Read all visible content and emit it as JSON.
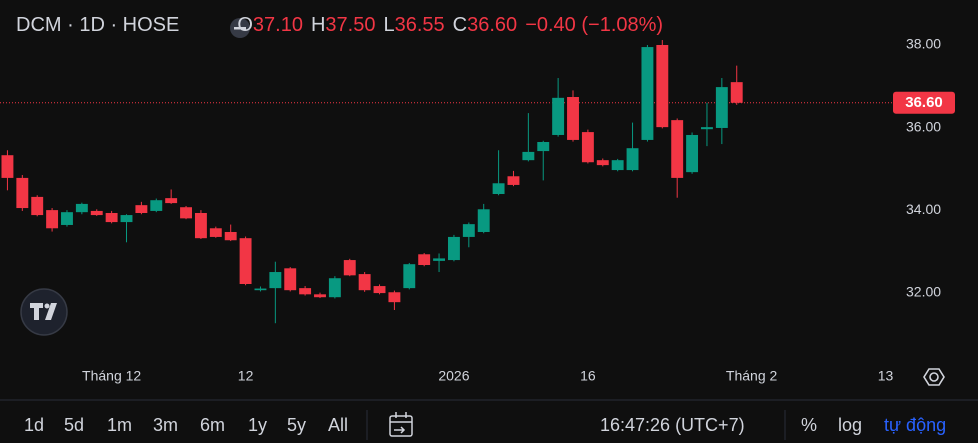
{
  "header": {
    "symbol": "DCM · 1D · HOSE",
    "o_label": "O",
    "open": "37.10",
    "h_label": "H",
    "high": "37.50",
    "l_label": "L",
    "low": "36.55",
    "c_label": "C",
    "close": "36.60",
    "change": "−0.40 (−1.08%)"
  },
  "chart_data": {
    "type": "candlestick",
    "categories": [
      null,
      null,
      null,
      null,
      null,
      null,
      null,
      "Tháng 12",
      null,
      null,
      null,
      null,
      null,
      null,
      null,
      null,
      "12",
      null,
      null,
      null,
      null,
      null,
      null,
      null,
      null,
      null,
      null,
      null,
      null,
      null,
      "2026",
      null,
      null,
      null,
      null,
      null,
      null,
      null,
      null,
      "16",
      null,
      null,
      null,
      null,
      null,
      null,
      null,
      null,
      null,
      null,
      "Tháng 2",
      null,
      null,
      null,
      null,
      null,
      null,
      null,
      null,
      "13"
    ],
    "open": [
      35.33,
      34.78,
      34.32,
      34.0,
      33.64,
      33.95,
      33.98,
      33.93,
      33.71,
      34.12,
      33.98,
      34.29,
      34.07,
      33.93,
      33.56,
      33.47,
      33.32,
      32.06,
      32.11,
      32.59,
      32.11,
      31.96,
      31.89,
      32.79,
      32.45,
      32.16,
      32.01,
      32.11,
      32.93,
      32.77,
      32.79,
      33.35,
      33.47,
      34.39,
      34.82,
      35.21,
      35.43,
      35.82,
      36.74,
      35.89,
      35.21,
      34.97,
      34.97,
      35.7,
      38.0,
      36.18,
      34.92,
      35.96,
      35.99,
      37.1,
      null,
      null,
      null,
      null,
      null,
      null,
      null,
      null,
      null,
      null
    ],
    "high": [
      35.45,
      34.85,
      34.36,
      34.05,
      34.0,
      34.18,
      34.02,
      33.98,
      33.9,
      34.2,
      34.28,
      34.5,
      34.1,
      34.0,
      33.6,
      33.65,
      33.36,
      32.15,
      32.75,
      32.62,
      32.16,
      32.0,
      32.4,
      32.82,
      32.5,
      32.2,
      32.05,
      32.72,
      32.96,
      32.95,
      33.4,
      33.7,
      34.15,
      35.45,
      34.95,
      36.35,
      35.68,
      37.2,
      36.9,
      35.95,
      35.25,
      35.24,
      36.12,
      38.0,
      38.12,
      36.22,
      35.88,
      36.6,
      37.2,
      37.5,
      null,
      null,
      null,
      null,
      null,
      null,
      null,
      null,
      null,
      null
    ],
    "low": [
      34.48,
      33.98,
      33.85,
      33.48,
      33.6,
      33.9,
      33.86,
      33.68,
      33.22,
      33.9,
      33.95,
      34.15,
      33.78,
      33.3,
      33.33,
      33.25,
      32.18,
      32.03,
      31.26,
      32.03,
      31.93,
      31.87,
      31.86,
      32.4,
      32.02,
      31.96,
      31.58,
      32.08,
      32.64,
      32.5,
      32.76,
      33.1,
      33.44,
      34.36,
      34.58,
      35.18,
      34.72,
      35.78,
      35.66,
      35.13,
      35.06,
      34.94,
      34.94,
      35.66,
      35.98,
      34.3,
      34.88,
      35.55,
      35.6,
      36.55,
      null,
      null,
      null,
      null,
      null,
      null,
      null,
      null,
      null,
      null
    ],
    "close": [
      34.78,
      34.05,
      33.88,
      33.56,
      33.95,
      34.15,
      33.88,
      33.71,
      33.88,
      33.93,
      34.24,
      34.17,
      33.8,
      33.32,
      33.35,
      33.27,
      32.21,
      32.1,
      32.5,
      32.06,
      31.96,
      31.89,
      32.35,
      32.42,
      32.06,
      31.99,
      31.77,
      32.69,
      32.67,
      32.83,
      33.35,
      33.66,
      34.02,
      34.65,
      34.61,
      35.41,
      35.65,
      36.72,
      35.7,
      35.16,
      35.09,
      35.21,
      35.5,
      37.95,
      36.01,
      34.78,
      35.82,
      36.01,
      36.98,
      36.6,
      null,
      null,
      null,
      null,
      null,
      null,
      null,
      null,
      null,
      null
    ],
    "up_color": "#089981",
    "down_color": "#f23645",
    "ylim": [
      30.49,
      39.09
    ],
    "yticks": [
      {
        "value": 32,
        "label": "32.00"
      },
      {
        "value": 34,
        "label": "34.00"
      },
      {
        "value": 36,
        "label": "36.00"
      },
      {
        "value": 38,
        "label": "38.00"
      }
    ],
    "last_price": {
      "value": 36.6,
      "label": "36.60"
    },
    "grid": false
  },
  "toolbar": {
    "ranges": [
      "1d",
      "5d",
      "1m",
      "3m",
      "6m",
      "1y",
      "5y",
      "All"
    ],
    "time": "16:47:26 (UTC+7)",
    "percent": "%",
    "log": "log",
    "auto": "tự động"
  }
}
